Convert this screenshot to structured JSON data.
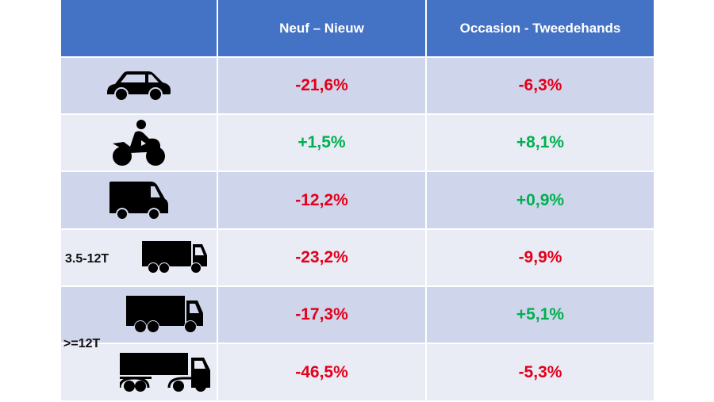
{
  "header": {
    "col_new": "Neuf – Nieuw",
    "col_used": "Occasion - Tweedehands"
  },
  "colors": {
    "header": "#4472c4",
    "row_odd": "#cfd5ea",
    "row_even": "#e9ebf5",
    "negative": "#e3001b",
    "positive": "#00b050"
  },
  "rows": [
    {
      "icon": "car-icon",
      "new": "-21,6%",
      "used": "-6,3%"
    },
    {
      "icon": "motorcycle-icon",
      "new": "+1,5%",
      "used": "+8,1%"
    },
    {
      "icon": "van-icon",
      "new": "-12,2%",
      "used": "+0,9%"
    },
    {
      "icon": "small-truck-icon",
      "label": "3.5-12T",
      "new": "-23,2%",
      "used": "-9,9%"
    },
    {
      "icon": "truck-icon",
      "new": "-17,3%",
      "used": "+5,1%"
    },
    {
      "icon": "semi-truck-icon",
      "new": "-46,5%",
      "used": "-5,3%"
    }
  ],
  "group_label": ">=12T"
}
